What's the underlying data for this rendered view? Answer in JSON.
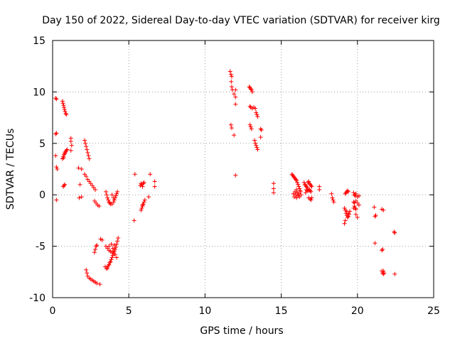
{
  "chart_data": {
    "type": "scatter",
    "title": "Day 150 of 2022, Sidereal Day-to-day VTEC variation (SDTVAR) for receiver kirg",
    "xlabel": "GPS time / hours",
    "ylabel": "SDTVAR / TECUs",
    "xlim": [
      0,
      25
    ],
    "ylim": [
      -10,
      15
    ],
    "xticks": [
      0,
      5,
      10,
      15,
      20,
      25
    ],
    "yticks": [
      -10,
      -5,
      0,
      5,
      10,
      15
    ],
    "grid": true,
    "marker": "+",
    "color": "#ff0000",
    "series": [
      {
        "name": "kirg",
        "points": [
          [
            0.2,
            9.4
          ],
          [
            0.25,
            9.3
          ],
          [
            0.2,
            5.9
          ],
          [
            0.25,
            6.0
          ],
          [
            0.2,
            3.8
          ],
          [
            0.25,
            2.7
          ],
          [
            0.3,
            2.5
          ],
          [
            0.25,
            -0.5
          ],
          [
            0.65,
            9.1
          ],
          [
            0.68,
            8.9
          ],
          [
            0.72,
            8.7
          ],
          [
            0.75,
            8.5
          ],
          [
            0.78,
            8.3
          ],
          [
            0.82,
            8.1
          ],
          [
            0.86,
            7.9
          ],
          [
            0.9,
            7.8
          ],
          [
            0.65,
            3.5
          ],
          [
            0.7,
            3.7
          ],
          [
            0.75,
            3.9
          ],
          [
            0.8,
            4.0
          ],
          [
            0.85,
            4.2
          ],
          [
            0.9,
            4.3
          ],
          [
            0.95,
            4.4
          ],
          [
            0.72,
            3.6
          ],
          [
            0.82,
            4.1
          ],
          [
            0.7,
            0.8
          ],
          [
            0.75,
            0.9
          ],
          [
            0.8,
            1.0
          ],
          [
            1.2,
            5.5
          ],
          [
            1.2,
            5.2
          ],
          [
            1.25,
            4.8
          ],
          [
            1.2,
            4.3
          ],
          [
            1.7,
            2.6
          ],
          [
            1.8,
            1.0
          ],
          [
            1.9,
            2.5
          ],
          [
            1.9,
            -0.2
          ],
          [
            1.75,
            -0.3
          ],
          [
            2.1,
            5.3
          ],
          [
            2.15,
            5.0
          ],
          [
            2.2,
            4.7
          ],
          [
            2.25,
            4.4
          ],
          [
            2.3,
            4.1
          ],
          [
            2.35,
            3.8
          ],
          [
            2.4,
            3.5
          ],
          [
            2.1,
            2.0
          ],
          [
            2.2,
            1.8
          ],
          [
            2.3,
            1.5
          ],
          [
            2.4,
            1.3
          ],
          [
            2.5,
            1.1
          ],
          [
            2.6,
            0.9
          ],
          [
            2.7,
            0.7
          ],
          [
            2.8,
            0.5
          ],
          [
            2.75,
            -0.6
          ],
          [
            2.85,
            -0.8
          ],
          [
            2.95,
            -1.0
          ],
          [
            3.05,
            -1.1
          ],
          [
            2.2,
            -7.3
          ],
          [
            2.25,
            -7.6
          ],
          [
            2.3,
            -7.9
          ],
          [
            2.4,
            -8.1
          ],
          [
            2.5,
            -8.2
          ],
          [
            2.6,
            -8.3
          ],
          [
            2.7,
            -8.4
          ],
          [
            2.8,
            -8.5
          ],
          [
            2.9,
            -8.6
          ],
          [
            3.1,
            -8.7
          ],
          [
            2.75,
            -5.6
          ],
          [
            2.8,
            -5.3
          ],
          [
            2.85,
            -5.0
          ],
          [
            2.9,
            -4.9
          ],
          [
            3.15,
            -4.3
          ],
          [
            3.25,
            -4.4
          ],
          [
            3.5,
            0.3
          ],
          [
            3.55,
            0.0
          ],
          [
            3.6,
            -0.3
          ],
          [
            3.65,
            -0.5
          ],
          [
            3.7,
            -0.7
          ],
          [
            3.75,
            -0.8
          ],
          [
            3.8,
            -0.9
          ],
          [
            3.9,
            -0.9
          ],
          [
            4.0,
            -0.7
          ],
          [
            4.05,
            -0.5
          ],
          [
            4.1,
            -0.3
          ],
          [
            4.15,
            -0.1
          ],
          [
            4.2,
            0.1
          ],
          [
            4.25,
            0.3
          ],
          [
            3.9,
            0.0
          ],
          [
            4.0,
            -0.3
          ],
          [
            3.45,
            -7.0
          ],
          [
            3.55,
            -7.2
          ],
          [
            3.6,
            -7.1
          ],
          [
            3.65,
            -6.9
          ],
          [
            3.7,
            -6.8
          ],
          [
            3.75,
            -6.6
          ],
          [
            3.8,
            -6.5
          ],
          [
            3.85,
            -6.3
          ],
          [
            3.9,
            -6.1
          ],
          [
            3.95,
            -5.9
          ],
          [
            4.0,
            -5.7
          ],
          [
            4.05,
            -5.5
          ],
          [
            4.1,
            -5.3
          ],
          [
            4.15,
            -5.1
          ],
          [
            4.2,
            -4.8
          ],
          [
            4.25,
            -4.5
          ],
          [
            4.3,
            -4.2
          ],
          [
            3.5,
            -5.0
          ],
          [
            3.6,
            -5.2
          ],
          [
            3.7,
            -5.4
          ],
          [
            3.8,
            -5.5
          ],
          [
            3.9,
            -5.6
          ],
          [
            4.0,
            -5.5
          ],
          [
            4.1,
            -5.8
          ],
          [
            4.2,
            -6.1
          ],
          [
            3.95,
            -5.2
          ],
          [
            4.05,
            -4.9
          ],
          [
            3.85,
            -4.8
          ],
          [
            3.7,
            -5.0
          ],
          [
            5.4,
            2.0
          ],
          [
            5.35,
            -2.5
          ],
          [
            5.75,
            0.9
          ],
          [
            5.8,
            1.1
          ],
          [
            5.85,
            1.0
          ],
          [
            5.9,
            0.8
          ],
          [
            5.95,
            1.1
          ],
          [
            6.0,
            1.2
          ],
          [
            5.8,
            -1.5
          ],
          [
            5.85,
            -1.3
          ],
          [
            5.9,
            -1.1
          ],
          [
            5.95,
            -0.9
          ],
          [
            6.0,
            -0.7
          ],
          [
            6.05,
            -0.5
          ],
          [
            5.9,
            -1.0
          ],
          [
            6.4,
            2.0
          ],
          [
            6.3,
            -0.2
          ],
          [
            6.7,
            1.3
          ],
          [
            6.7,
            0.8
          ],
          [
            11.65,
            12.0
          ],
          [
            11.7,
            11.7
          ],
          [
            11.75,
            11.5
          ],
          [
            11.72,
            11.0
          ],
          [
            11.75,
            10.5
          ],
          [
            11.8,
            10.2
          ],
          [
            11.9,
            9.8
          ],
          [
            12.0,
            10.2
          ],
          [
            12.0,
            9.5
          ],
          [
            12.0,
            8.8
          ],
          [
            11.7,
            6.8
          ],
          [
            11.75,
            6.5
          ],
          [
            11.9,
            5.8
          ],
          [
            12.0,
            1.9
          ],
          [
            12.9,
            10.5
          ],
          [
            12.95,
            10.4
          ],
          [
            13.0,
            10.3
          ],
          [
            13.05,
            10.2
          ],
          [
            13.1,
            10.0
          ],
          [
            12.95,
            8.6
          ],
          [
            13.0,
            8.5
          ],
          [
            13.1,
            8.4
          ],
          [
            13.2,
            8.5
          ],
          [
            13.3,
            8.4
          ],
          [
            13.35,
            8.0
          ],
          [
            13.4,
            7.8
          ],
          [
            13.45,
            7.6
          ],
          [
            12.95,
            6.8
          ],
          [
            13.0,
            6.6
          ],
          [
            13.05,
            6.4
          ],
          [
            13.25,
            5.3
          ],
          [
            13.3,
            5.0
          ],
          [
            13.35,
            4.8
          ],
          [
            13.4,
            4.6
          ],
          [
            13.45,
            4.4
          ],
          [
            13.65,
            6.4
          ],
          [
            13.7,
            6.3
          ],
          [
            13.65,
            5.6
          ],
          [
            14.5,
            1.1
          ],
          [
            14.5,
            0.6
          ],
          [
            14.5,
            0.2
          ],
          [
            15.7,
            2.0
          ],
          [
            15.75,
            1.9
          ],
          [
            15.8,
            1.8
          ],
          [
            15.85,
            1.7
          ],
          [
            15.9,
            1.6
          ],
          [
            15.95,
            1.5
          ],
          [
            16.0,
            1.4
          ],
          [
            16.05,
            1.2
          ],
          [
            16.1,
            1.0
          ],
          [
            16.15,
            0.8
          ],
          [
            16.2,
            0.6
          ],
          [
            16.25,
            0.4
          ],
          [
            15.8,
            0.1
          ],
          [
            15.85,
            -0.2
          ],
          [
            15.9,
            0.3
          ],
          [
            15.95,
            0.0
          ],
          [
            16.0,
            -0.3
          ],
          [
            16.05,
            0.2
          ],
          [
            16.1,
            -0.1
          ],
          [
            16.15,
            0.1
          ],
          [
            16.2,
            -0.2
          ],
          [
            16.25,
            0.3
          ],
          [
            16.3,
            0.0
          ],
          [
            16.0,
            0.5
          ],
          [
            16.5,
            1.2
          ],
          [
            16.55,
            1.0
          ],
          [
            16.6,
            0.9
          ],
          [
            16.65,
            0.8
          ],
          [
            16.7,
            0.7
          ],
          [
            16.75,
            1.2
          ],
          [
            16.8,
            1.3
          ],
          [
            16.85,
            1.1
          ],
          [
            16.9,
            1.0
          ],
          [
            16.95,
            0.9
          ],
          [
            17.0,
            0.8
          ],
          [
            16.6,
            0.2
          ],
          [
            16.65,
            0.5
          ],
          [
            16.7,
            0.4
          ],
          [
            16.75,
            0.5
          ],
          [
            16.8,
            0.4
          ],
          [
            16.85,
            0.5
          ],
          [
            16.9,
            0.4
          ],
          [
            16.95,
            0.3
          ],
          [
            16.8,
            -0.3
          ],
          [
            16.9,
            -0.4
          ],
          [
            16.95,
            -0.5
          ],
          [
            17.0,
            -0.3
          ],
          [
            17.5,
            0.8
          ],
          [
            17.5,
            0.5
          ],
          [
            18.3,
            0.1
          ],
          [
            18.35,
            -0.3
          ],
          [
            18.4,
            -0.5
          ],
          [
            18.45,
            -0.7
          ],
          [
            19.2,
            0.1
          ],
          [
            19.25,
            0.2
          ],
          [
            19.3,
            0.3
          ],
          [
            19.35,
            0.4
          ],
          [
            19.4,
            0.3
          ],
          [
            19.15,
            -1.3
          ],
          [
            19.2,
            -1.5
          ],
          [
            19.25,
            -1.8
          ],
          [
            19.3,
            -2.0
          ],
          [
            19.35,
            -2.2
          ],
          [
            19.4,
            -2.1
          ],
          [
            19.45,
            -1.9
          ],
          [
            19.5,
            -1.6
          ],
          [
            19.2,
            -2.5
          ],
          [
            19.15,
            -2.8
          ],
          [
            19.3,
            -1.6
          ],
          [
            19.4,
            -1.8
          ],
          [
            19.75,
            0.2
          ],
          [
            19.8,
            0.0
          ],
          [
            19.85,
            -0.1
          ],
          [
            19.9,
            0.1
          ],
          [
            20.0,
            -0.2
          ],
          [
            20.1,
            -0.1
          ],
          [
            19.75,
            -1.3
          ],
          [
            19.8,
            -1.1
          ],
          [
            19.85,
            -1.3
          ],
          [
            19.9,
            -1.4
          ],
          [
            19.75,
            -0.7
          ],
          [
            19.8,
            -0.8
          ],
          [
            19.9,
            -0.6
          ],
          [
            20.0,
            -0.8
          ],
          [
            20.1,
            -1.0
          ],
          [
            19.9,
            -1.9
          ],
          [
            20.0,
            -2.2
          ],
          [
            21.1,
            -1.2
          ],
          [
            21.2,
            -2.0
          ],
          [
            21.15,
            -2.1
          ],
          [
            21.6,
            -1.4
          ],
          [
            21.7,
            -1.5
          ],
          [
            21.15,
            -4.7
          ],
          [
            21.6,
            -5.4
          ],
          [
            21.65,
            -5.3
          ],
          [
            21.6,
            -7.4
          ],
          [
            21.65,
            -7.6
          ],
          [
            21.7,
            -7.7
          ],
          [
            21.75,
            -7.6
          ],
          [
            21.7,
            -7.4
          ],
          [
            22.4,
            -3.6
          ],
          [
            22.45,
            -3.7
          ],
          [
            22.45,
            -7.7
          ]
        ]
      }
    ]
  }
}
